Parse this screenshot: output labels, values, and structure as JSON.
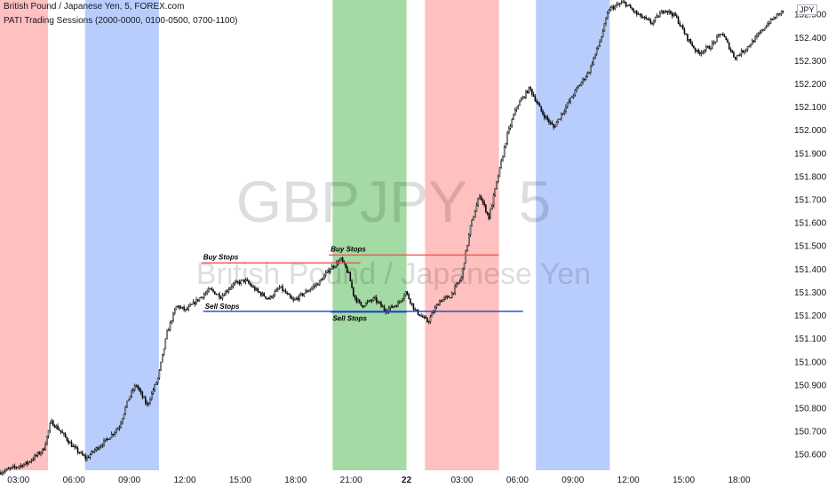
{
  "header": {
    "title": "British Pound / Japanese Yen, 5, FOREX.com",
    "indicator": "PATI Trading Sessions (2000-0000, 0100-0500, 0700-1100)",
    "currency_tag": "JPY"
  },
  "watermark": {
    "symbol": "GBPJPY · 5",
    "name": "British Pound / Japanese Yen"
  },
  "chart_data": {
    "type": "candlestick",
    "y_axis": {
      "ylim": [
        150.53,
        152.56
      ],
      "ticks": [
        "152.500",
        "152.400",
        "152.300",
        "152.200",
        "152.100",
        "152.000",
        "151.900",
        "151.800",
        "151.700",
        "151.600",
        "151.500",
        "151.400",
        "151.300",
        "151.200",
        "151.100",
        "151.000",
        "150.900",
        "150.800",
        "150.700",
        "150.600"
      ]
    },
    "x_axis": {
      "start_hour": 2.0,
      "end_hour": 44.5,
      "ticks": [
        {
          "label": "03:00",
          "h": 3
        },
        {
          "label": "06:00",
          "h": 6
        },
        {
          "label": "09:00",
          "h": 9
        },
        {
          "label": "12:00",
          "h": 12
        },
        {
          "label": "15:00",
          "h": 15
        },
        {
          "label": "18:00",
          "h": 18
        },
        {
          "label": "21:00",
          "h": 21
        },
        {
          "label": "22",
          "h": 24,
          "bold": true
        },
        {
          "label": "03:00",
          "h": 27
        },
        {
          "label": "06:00",
          "h": 30
        },
        {
          "label": "09:00",
          "h": 33
        },
        {
          "label": "12:00",
          "h": 36
        },
        {
          "label": "15:00",
          "h": 39
        },
        {
          "label": "18:00",
          "h": 42
        }
      ]
    },
    "sessions": [
      {
        "from": 2.0,
        "to": 4.6,
        "color": "#ff9a9a"
      },
      {
        "from": 6.6,
        "to": 10.6,
        "color": "#8eaefc"
      },
      {
        "from": 20.0,
        "to": 24.0,
        "color": "#6cc36c"
      },
      {
        "from": 25.0,
        "to": 29.0,
        "color": "#ff9a9a"
      },
      {
        "from": 31.0,
        "to": 35.0,
        "color": "#8eaefc"
      }
    ],
    "price_path": [
      [
        2.0,
        150.52
      ],
      [
        3.5,
        150.56
      ],
      [
        4.4,
        150.62
      ],
      [
        4.8,
        150.74
      ],
      [
        5.3,
        150.7
      ],
      [
        6.0,
        150.63
      ],
      [
        6.7,
        150.58
      ],
      [
        7.2,
        150.62
      ],
      [
        7.8,
        150.66
      ],
      [
        8.5,
        150.72
      ],
      [
        9.0,
        150.84
      ],
      [
        9.4,
        150.9
      ],
      [
        10.0,
        150.81
      ],
      [
        10.6,
        150.93
      ],
      [
        11.1,
        151.13
      ],
      [
        11.6,
        151.24
      ],
      [
        12.1,
        151.22
      ],
      [
        12.8,
        151.27
      ],
      [
        13.4,
        151.31
      ],
      [
        14.0,
        151.28
      ],
      [
        14.6,
        151.33
      ],
      [
        15.3,
        151.35
      ],
      [
        16.0,
        151.3
      ],
      [
        16.6,
        151.27
      ],
      [
        17.2,
        151.32
      ],
      [
        17.9,
        151.26
      ],
      [
        18.6,
        151.3
      ],
      [
        19.3,
        151.34
      ],
      [
        19.9,
        151.4
      ],
      [
        20.5,
        151.44
      ],
      [
        20.9,
        151.38
      ],
      [
        21.2,
        151.28
      ],
      [
        21.6,
        151.24
      ],
      [
        22.3,
        151.27
      ],
      [
        22.9,
        151.22
      ],
      [
        23.6,
        151.25
      ],
      [
        24.0,
        151.3
      ],
      [
        24.5,
        151.22
      ],
      [
        25.2,
        151.17
      ],
      [
        25.8,
        151.26
      ],
      [
        26.4,
        151.28
      ],
      [
        27.0,
        151.36
      ],
      [
        27.5,
        151.58
      ],
      [
        28.0,
        151.72
      ],
      [
        28.5,
        151.62
      ],
      [
        29.0,
        151.8
      ],
      [
        29.5,
        151.98
      ],
      [
        30.0,
        152.1
      ],
      [
        30.7,
        152.18
      ],
      [
        31.4,
        152.07
      ],
      [
        32.0,
        152.01
      ],
      [
        32.6,
        152.09
      ],
      [
        33.2,
        152.17
      ],
      [
        33.9,
        152.25
      ],
      [
        34.5,
        152.38
      ],
      [
        35.0,
        152.52
      ],
      [
        35.8,
        152.55
      ],
      [
        36.5,
        152.5
      ],
      [
        37.3,
        152.46
      ],
      [
        38.0,
        152.52
      ],
      [
        38.6,
        152.49
      ],
      [
        39.2,
        152.4
      ],
      [
        39.8,
        152.33
      ],
      [
        40.5,
        152.36
      ],
      [
        41.1,
        152.42
      ],
      [
        41.8,
        152.31
      ],
      [
        42.4,
        152.35
      ],
      [
        43.0,
        152.4
      ],
      [
        43.6,
        152.46
      ],
      [
        44.5,
        152.52
      ]
    ],
    "levels": [
      {
        "label": "Buy Stops",
        "price": 151.425,
        "from": 12.9,
        "to": 21.5,
        "color": "#ef5350"
      },
      {
        "label": "Buy Stops",
        "price": 151.459,
        "from": 19.8,
        "to": 29.0,
        "color": "#ef5350"
      },
      {
        "label": "Sell Stops",
        "price": 151.216,
        "from": 13.0,
        "to": 30.3,
        "color": "#1c3fcc"
      },
      {
        "label": "Sell Stops",
        "price": 151.213,
        "from": 19.9,
        "to": 24.0,
        "color": "#1c3fcc"
      }
    ]
  }
}
